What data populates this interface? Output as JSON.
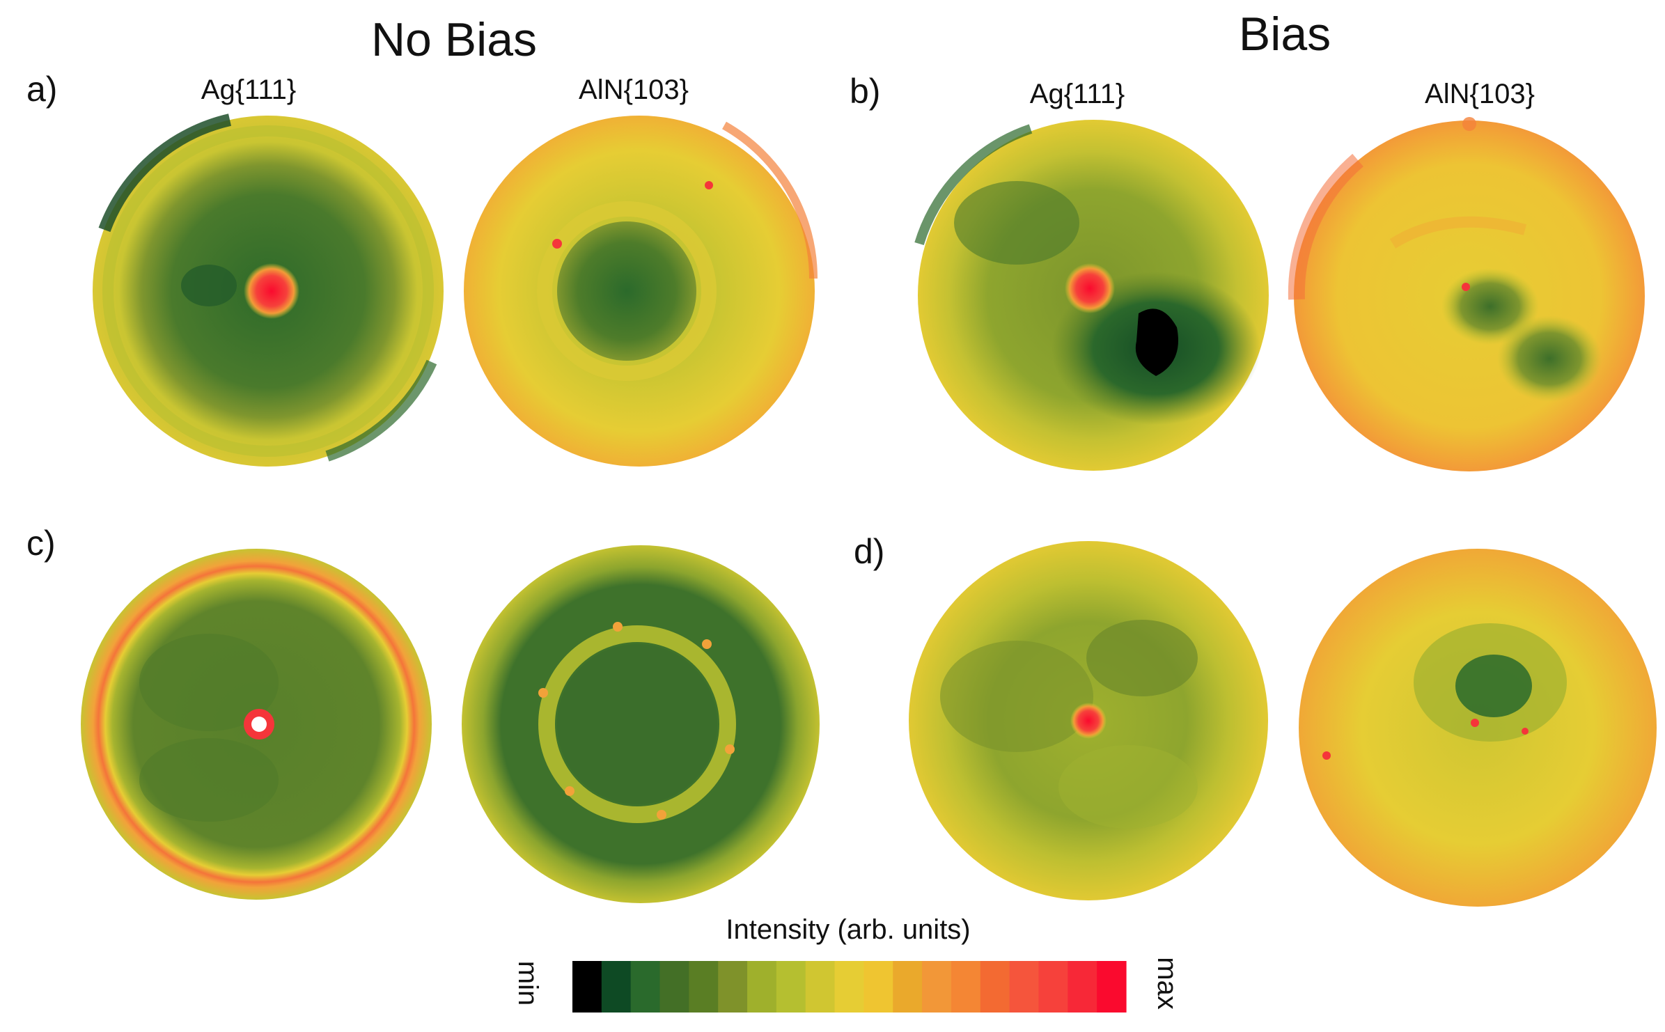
{
  "groups": {
    "no_bias": "No Bias",
    "bias": "Bias"
  },
  "panels": [
    {
      "label": "a)",
      "left_title": "Ag{111}",
      "right_title": "AlN{103}"
    },
    {
      "label": "b)",
      "left_title": "Ag{111}",
      "right_title": "AlN{103}"
    },
    {
      "label": "c)"
    },
    {
      "label": "d)"
    }
  ],
  "colorbar": {
    "title": "Intensity (arb. units)",
    "min_label": "min",
    "max_label": "max",
    "colors": [
      "#000000",
      "#0e4a24",
      "#2a6a2c",
      "#436f26",
      "#5a7e24",
      "#7f922a",
      "#9fb02c",
      "#b5bf30",
      "#d0c631",
      "#e6cd34",
      "#efc531",
      "#eaa92c",
      "#f29738",
      "#f48634",
      "#f36a32",
      "#f5553c",
      "#f6413b",
      "#f72837",
      "#fa0a2e"
    ]
  },
  "colors": {
    "dark_green": "#1c5a2a",
    "mid_green": "#4f7a2a",
    "olive": "#8aa12f",
    "yellow": "#e6cd34",
    "orange": "#f2a23a",
    "red": "#f5353a",
    "black": "#000000"
  }
}
